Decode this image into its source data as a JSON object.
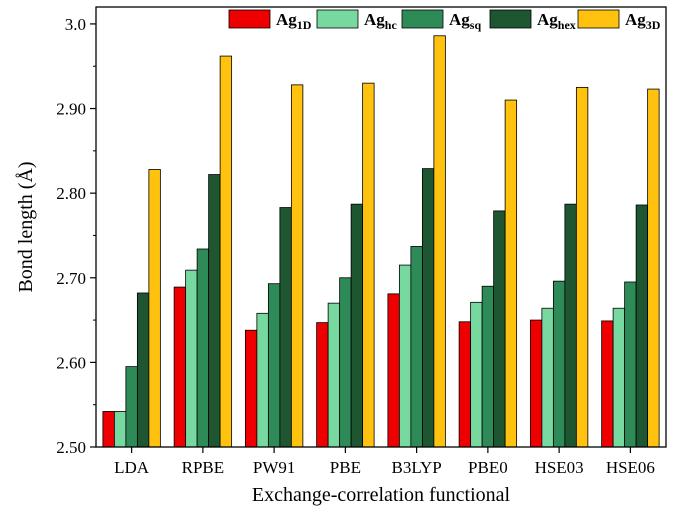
{
  "chart_data": {
    "type": "bar",
    "xlabel": "Exchange-correlation functional",
    "ylabel": "Bond length (Å)",
    "ylim": [
      2.5,
      3.02
    ],
    "yticks": [
      2.5,
      2.6,
      2.7,
      2.8,
      2.9,
      3.0
    ],
    "ytick_labels": [
      "2.50",
      "2.60",
      "2.70",
      "2.80",
      "2.90",
      "3.0"
    ],
    "grid": false,
    "legend_position": "top",
    "categories": [
      "LDA",
      "RPBE",
      "PW91",
      "PBE",
      "B3LYP",
      "PBE0",
      "HSE03",
      "HSE06"
    ],
    "series": [
      {
        "name": "Ag",
        "subscript": "1D",
        "color": "#ee0000",
        "values": [
          2.542,
          2.689,
          2.638,
          2.647,
          2.681,
          2.648,
          2.65,
          2.649
        ]
      },
      {
        "name": "Ag",
        "subscript": "hc",
        "color": "#77d9a0",
        "values": [
          2.542,
          2.709,
          2.658,
          2.67,
          2.715,
          2.671,
          2.664,
          2.664
        ]
      },
      {
        "name": "Ag",
        "subscript": "sq",
        "color": "#2e8b57",
        "values": [
          2.595,
          2.734,
          2.693,
          2.7,
          2.737,
          2.69,
          2.696,
          2.695
        ]
      },
      {
        "name": "Ag",
        "subscript": "hex",
        "color": "#1e5631",
        "values": [
          2.682,
          2.822,
          2.783,
          2.787,
          2.829,
          2.779,
          2.787,
          2.786
        ]
      },
      {
        "name": "Ag",
        "subscript": "3D",
        "color": "#ffc20e",
        "values": [
          2.828,
          2.962,
          2.928,
          2.93,
          2.986,
          2.91,
          2.925,
          2.923
        ]
      }
    ]
  }
}
